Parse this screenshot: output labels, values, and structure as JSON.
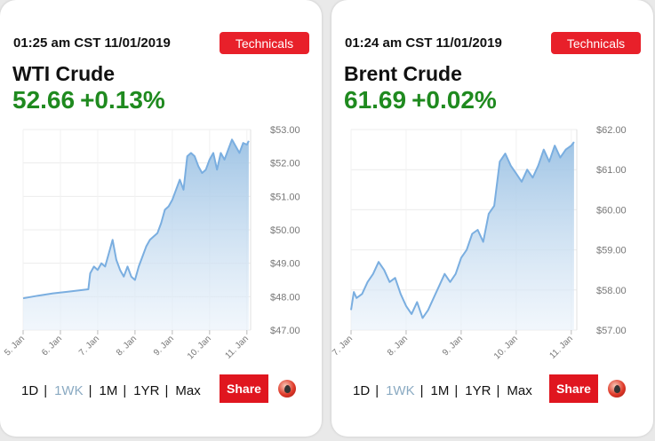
{
  "cards": [
    {
      "timestamp": "01:25 am CST 11/01/2019",
      "technicals_label": "Technicals",
      "name": "WTI Crude",
      "price": "52.66",
      "change": "+0.13%",
      "ranges": [
        "1D",
        "1WK",
        "1M",
        "1YR",
        "Max"
      ],
      "active_range": "1WK",
      "share_label": "Share",
      "logo_icon": "oil-drop-icon"
    },
    {
      "timestamp": "01:24 am CST 11/01/2019",
      "technicals_label": "Technicals",
      "name": "Brent Crude",
      "price": "61.69",
      "change": "+0.02%",
      "ranges": [
        "1D",
        "1WK",
        "1M",
        "1YR",
        "Max"
      ],
      "active_range": "1WK",
      "share_label": "Share",
      "logo_icon": "oil-drop-icon"
    }
  ],
  "colors": {
    "accent_red": "#e8202a",
    "price_green": "#1f8a1f",
    "line_blue": "#7aaee0",
    "active_range": "#8aaac2"
  },
  "chart_data": [
    {
      "type": "area",
      "title": "",
      "xlabel": "",
      "ylabel": "",
      "x_ticks": [
        "5. Jan",
        "6. Jan",
        "7. Jan",
        "8. Jan",
        "9. Jan",
        "10. Jan",
        "11. Jan"
      ],
      "y_ticks": [
        "$47.00",
        "$48.00",
        "$49.00",
        "$50.00",
        "$51.00",
        "$52.00",
        "$53.00"
      ],
      "ylim": [
        47,
        53
      ],
      "xlim": [
        5,
        11.1
      ],
      "grid": true,
      "series": [
        {
          "x": [
            5.0,
            5.4,
            5.8,
            6.2,
            6.6,
            6.75,
            6.8,
            6.9,
            7.0,
            7.1,
            7.2,
            7.3,
            7.4,
            7.5,
            7.6,
            7.7,
            7.8,
            7.9,
            8.0,
            8.1,
            8.2,
            8.3,
            8.4,
            8.5,
            8.6,
            8.7,
            8.8,
            8.9,
            9.0,
            9.1,
            9.2,
            9.3,
            9.4,
            9.5,
            9.6,
            9.7,
            9.8,
            9.9,
            10.0,
            10.1,
            10.2,
            10.3,
            10.4,
            10.5,
            10.6,
            10.7,
            10.8,
            10.9,
            11.0,
            11.05
          ],
          "y": [
            47.95,
            48.03,
            48.1,
            48.15,
            48.2,
            48.22,
            48.7,
            48.9,
            48.8,
            49.0,
            48.9,
            49.3,
            49.7,
            49.1,
            48.8,
            48.6,
            48.9,
            48.6,
            48.5,
            48.9,
            49.2,
            49.5,
            49.7,
            49.8,
            49.9,
            50.2,
            50.6,
            50.7,
            50.9,
            51.2,
            51.5,
            51.2,
            52.2,
            52.3,
            52.2,
            51.9,
            51.7,
            51.8,
            52.1,
            52.3,
            51.8,
            52.3,
            52.1,
            52.4,
            52.7,
            52.5,
            52.3,
            52.6,
            52.55,
            52.66
          ]
        }
      ]
    },
    {
      "type": "area",
      "title": "",
      "xlabel": "",
      "ylabel": "",
      "x_ticks": [
        "7. Jan",
        "8. Jan",
        "9. Jan",
        "10. Jan",
        "11. Jan"
      ],
      "y_ticks": [
        "$57.00",
        "$58.00",
        "$59.00",
        "$60.00",
        "$61.00",
        "$62.00"
      ],
      "ylim": [
        57,
        62
      ],
      "xlim": [
        7,
        11.1
      ],
      "grid": true,
      "series": [
        {
          "x": [
            7.0,
            7.05,
            7.1,
            7.2,
            7.3,
            7.4,
            7.5,
            7.6,
            7.7,
            7.8,
            7.9,
            8.0,
            8.1,
            8.2,
            8.3,
            8.4,
            8.5,
            8.6,
            8.7,
            8.8,
            8.9,
            9.0,
            9.1,
            9.2,
            9.3,
            9.4,
            9.5,
            9.6,
            9.7,
            9.8,
            9.9,
            10.0,
            10.1,
            10.2,
            10.3,
            10.4,
            10.5,
            10.6,
            10.7,
            10.8,
            10.9,
            11.0,
            11.05
          ],
          "y": [
            57.5,
            57.95,
            57.8,
            57.9,
            58.2,
            58.4,
            58.7,
            58.5,
            58.2,
            58.3,
            57.9,
            57.6,
            57.4,
            57.7,
            57.3,
            57.5,
            57.8,
            58.1,
            58.4,
            58.2,
            58.4,
            58.8,
            59.0,
            59.4,
            59.5,
            59.2,
            59.9,
            60.1,
            61.2,
            61.4,
            61.1,
            60.9,
            60.7,
            61.0,
            60.8,
            61.1,
            61.5,
            61.2,
            61.6,
            61.3,
            61.5,
            61.6,
            61.69
          ]
        }
      ]
    }
  ]
}
